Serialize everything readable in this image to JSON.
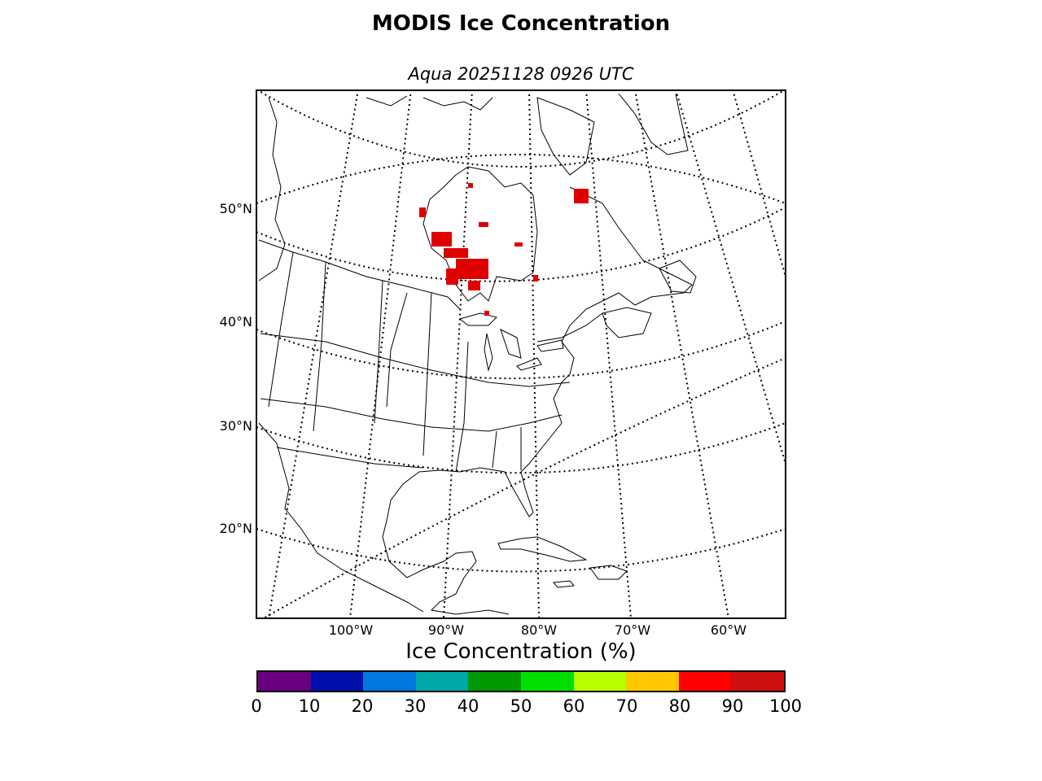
{
  "title": "MODIS Ice Concentration",
  "subtitle": "Aqua 20251128 0926 UTC",
  "map": {
    "lat_labels": [
      {
        "text": "50°N",
        "lat": 50
      },
      {
        "text": "40°N",
        "lat": 40
      },
      {
        "text": "30°N",
        "lat": 30
      },
      {
        "text": "20°N",
        "lat": 20
      }
    ],
    "lon_labels": [
      {
        "text": "100°W",
        "lon": -100
      },
      {
        "text": "90°W",
        "lon": -90
      },
      {
        "text": "80°W",
        "lon": -80
      },
      {
        "text": "70°W",
        "lon": -70
      },
      {
        "text": "60°W",
        "lon": -60
      }
    ],
    "gridline_style": "dotted",
    "ice_color": "#e00000",
    "ice_regions": [
      "Hudson Bay (western and central)",
      "James Bay",
      "Ungava Bay",
      "northern Lake Superior / Nipigon area"
    ]
  },
  "colorbar": {
    "label": "Ice Concentration (%)",
    "ticks": [
      "0",
      "10",
      "20",
      "30",
      "40",
      "50",
      "60",
      "70",
      "80",
      "90",
      "100"
    ],
    "colors": [
      "#6a0080",
      "#0010aa",
      "#0078e0",
      "#00a8a8",
      "#009a00",
      "#00e000",
      "#b8ff00",
      "#ffc800",
      "#ff0000",
      "#cc1010"
    ]
  }
}
